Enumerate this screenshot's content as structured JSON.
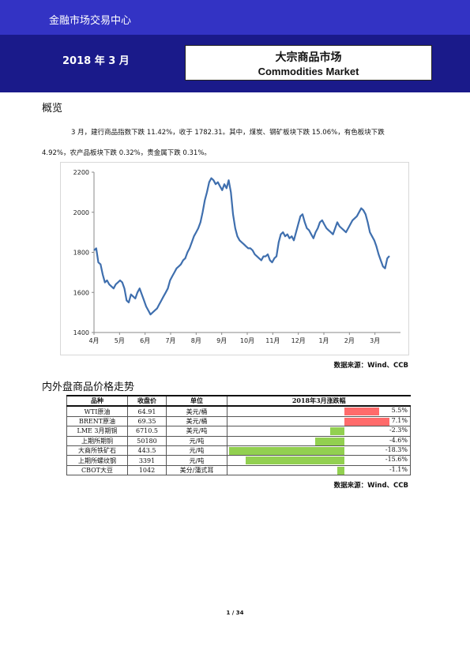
{
  "header": {
    "org": "金融市场交易中心",
    "date": "2018 年 3 月",
    "title_cn": "大宗商品市场",
    "title_en": "Commodities Market"
  },
  "overview": {
    "heading": "概览",
    "line1": "3 月，建行商品指数下跌 11.42%，收于 1782.31。其中，煤炭、钢矿板块下跌 15.06%，有色板块下跌",
    "line2": "4.92%，农产品板块下跌 0.32%，贵金属下跌 0.31%。"
  },
  "chart_data": {
    "type": "line",
    "x_ticks": [
      "4月",
      "5月",
      "6月",
      "7月",
      "8月",
      "9月",
      "10月",
      "11月",
      "12月",
      "1月",
      "2月",
      "3月"
    ],
    "ylim": [
      1400,
      2200
    ],
    "y_ticks": [
      "1400",
      "1600",
      "1800",
      "2000",
      "2200"
    ],
    "grid": false,
    "series": [
      {
        "color": "#3f6fae",
        "values": [
          1810,
          1820,
          1750,
          1740,
          1690,
          1650,
          1660,
          1640,
          1630,
          1620,
          1640,
          1650,
          1660,
          1650,
          1620,
          1560,
          1550,
          1590,
          1580,
          1570,
          1600,
          1620,
          1590,
          1560,
          1530,
          1510,
          1490,
          1500,
          1510,
          1520,
          1540,
          1560,
          1580,
          1600,
          1620,
          1660,
          1680,
          1700,
          1720,
          1730,
          1740,
          1760,
          1770,
          1800,
          1820,
          1850,
          1880,
          1900,
          1920,
          1950,
          2000,
          2060,
          2100,
          2150,
          2170,
          2160,
          2140,
          2150,
          2130,
          2110,
          2140,
          2120,
          2160,
          2100,
          1990,
          1920,
          1880,
          1860,
          1850,
          1840,
          1830,
          1820,
          1820,
          1810,
          1790,
          1780,
          1770,
          1760,
          1780,
          1780,
          1790,
          1760,
          1750,
          1770,
          1780,
          1850,
          1890,
          1900,
          1880,
          1890,
          1870,
          1880,
          1860,
          1900,
          1940,
          1980,
          1990,
          1950,
          1920,
          1910,
          1890,
          1870,
          1900,
          1920,
          1950,
          1960,
          1940,
          1920,
          1910,
          1900,
          1890,
          1920,
          1950,
          1930,
          1920,
          1910,
          1900,
          1920,
          1940,
          1960,
          1970,
          1980,
          2000,
          2020,
          2010,
          1990,
          1950,
          1900,
          1880,
          1860,
          1830,
          1790,
          1760,
          1730,
          1720,
          1770,
          1782
        ]
      }
    ]
  },
  "chart_source": "数据来源：Wind、CCB",
  "table_section": {
    "heading": "内外盘商品价格走势",
    "headers": [
      "品种",
      "收盘价",
      "单位",
      "2018年3月涨跌幅"
    ],
    "rows": [
      {
        "name": "WTI原油",
        "close": "64.91",
        "unit": "美元/桶",
        "change": 5.5,
        "change_label": "5.5%",
        "color": "#ff6b6b"
      },
      {
        "name": "BRENT原油",
        "close": "69.35",
        "unit": "美元/桶",
        "change": 7.1,
        "change_label": "7.1%",
        "color": "#ff6b6b"
      },
      {
        "name": "LME 3月期铜",
        "close": "6710.5",
        "unit": "美元/吨",
        "change": -2.3,
        "change_label": "-2.3%",
        "color": "#92d050"
      },
      {
        "name": "上期所期铜",
        "close": "50180",
        "unit": "元/吨",
        "change": -4.6,
        "change_label": "-4.6%",
        "color": "#92d050"
      },
      {
        "name": "大商所铁矿石",
        "close": "443.5",
        "unit": "元/吨",
        "change": -18.3,
        "change_label": "-18.3%",
        "color": "#92d050"
      },
      {
        "name": "上期所螺纹钢",
        "close": "3391",
        "unit": "元/吨",
        "change": -15.6,
        "change_label": "-15.6%",
        "color": "#92d050"
      },
      {
        "name": "CBOT大豆",
        "close": "1042",
        "unit": "美分/蒲式耳",
        "change": -1.1,
        "change_label": "-1.1%",
        "color": "#92d050"
      }
    ],
    "source": "数据来源：Wind、CCB"
  },
  "footer": {
    "page": "1 / 34"
  }
}
